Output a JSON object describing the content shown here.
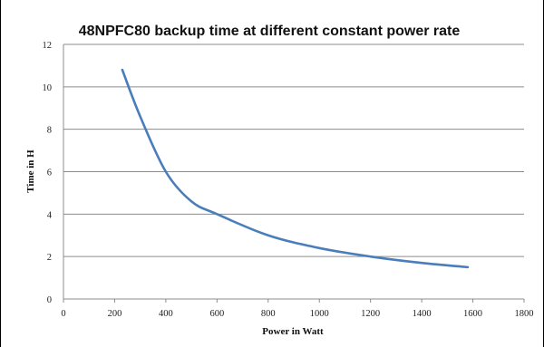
{
  "chart_data": {
    "type": "line",
    "title": "48NPFC80 backup time at different constant power rate",
    "xlabel": "Power in Watt",
    "ylabel": "Time in H",
    "xlim": [
      0,
      1800
    ],
    "ylim": [
      0,
      12
    ],
    "xticks": [
      0,
      200,
      400,
      600,
      800,
      1000,
      1200,
      1400,
      1600,
      1800
    ],
    "yticks": [
      0,
      2,
      4,
      6,
      8,
      10,
      12
    ],
    "grid": "horizontal",
    "legend": "none",
    "series": [
      {
        "color": "#4a7ebb",
        "x": [
          230,
          300,
          400,
          500,
          600,
          800,
          1000,
          1200,
          1400,
          1580
        ],
        "y": [
          10.8,
          8.6,
          6.0,
          4.6,
          4.0,
          3.0,
          2.4,
          2.0,
          1.7,
          1.5
        ]
      }
    ]
  }
}
